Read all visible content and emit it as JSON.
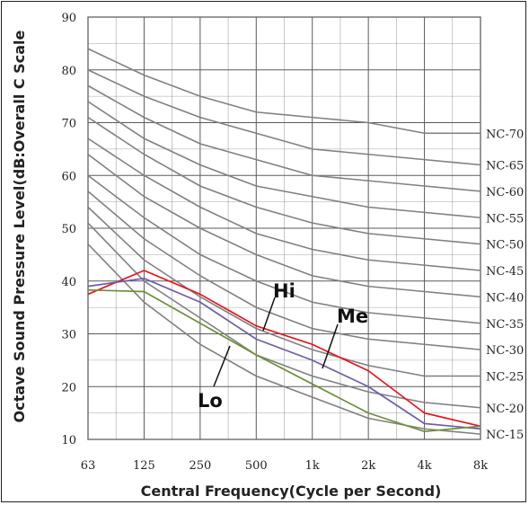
{
  "chart_data": {
    "type": "line",
    "xlabel": "Central Frequency(Cycle per Second)",
    "ylabel": "Octave Sound Pressure Level(dB:Overall C Scale",
    "ylim": [
      10,
      90
    ],
    "yticks": [
      "10",
      "20",
      "30",
      "40",
      "50",
      "60",
      "70",
      "80",
      "90"
    ],
    "categories": [
      "63",
      "125",
      "250",
      "500",
      "1k",
      "2k",
      "4k",
      "8k"
    ],
    "grid": true,
    "nc_curves": [
      {
        "name": "NC-70",
        "values": [
          84,
          79,
          75,
          72,
          71,
          70,
          68,
          68
        ]
      },
      {
        "name": "NC-65",
        "values": [
          80,
          75,
          71,
          68,
          65,
          64,
          63,
          62
        ]
      },
      {
        "name": "NC-60",
        "values": [
          77,
          71,
          66,
          63,
          60,
          59,
          58,
          57
        ]
      },
      {
        "name": "NC-55",
        "values": [
          74,
          67,
          62,
          58,
          56,
          54,
          53,
          52
        ]
      },
      {
        "name": "NC-50",
        "values": [
          71,
          64,
          58,
          54,
          51,
          49,
          48,
          47
        ]
      },
      {
        "name": "NC-45",
        "values": [
          67,
          60,
          54,
          49,
          46,
          44,
          43,
          42
        ]
      },
      {
        "name": "NC-40",
        "values": [
          64,
          56,
          50,
          45,
          41,
          39,
          38,
          37
        ]
      },
      {
        "name": "NC-35",
        "values": [
          60,
          52,
          45,
          40,
          36,
          34,
          33,
          32
        ]
      },
      {
        "name": "NC-30",
        "values": [
          57,
          48,
          41,
          35,
          31,
          29,
          28,
          27
        ]
      },
      {
        "name": "NC-25",
        "values": [
          54,
          44,
          37,
          31,
          27,
          24,
          22,
          22
        ]
      },
      {
        "name": "NC-20",
        "values": [
          51,
          40,
          33,
          26,
          22,
          19,
          17,
          16
        ]
      },
      {
        "name": "NC-15",
        "values": [
          47,
          36,
          28,
          22,
          18,
          14,
          12,
          11
        ]
      }
    ],
    "series": [
      {
        "name": "Hi",
        "color": "#e8141c",
        "values": [
          37.5,
          42,
          37.5,
          31.5,
          28,
          23,
          15,
          12.5
        ]
      },
      {
        "name": "Me",
        "color": "#6e5fa8",
        "values": [
          39,
          40.5,
          36,
          29,
          25,
          20,
          13,
          12
        ]
      },
      {
        "name": "Lo",
        "color": "#6f8f3a",
        "values": [
          38.3,
          38,
          32,
          26,
          20.5,
          15,
          11.5,
          12.5
        ]
      }
    ],
    "grid_color": "#5a5a5a",
    "nc_color": "#808080"
  }
}
